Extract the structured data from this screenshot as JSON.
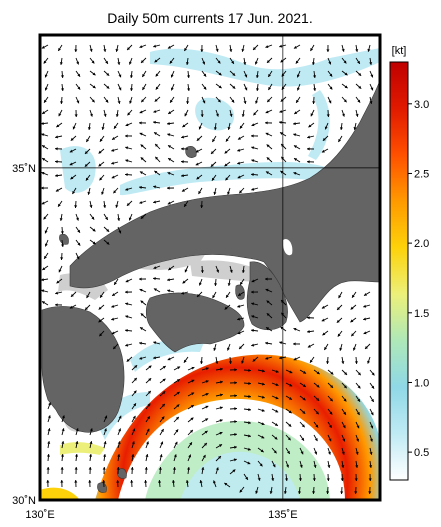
{
  "title": "Daily 50m currents 17 Jun. 2021.",
  "map": {
    "lon_range": [
      130,
      137
    ],
    "lat_range": [
      30,
      37
    ],
    "x_ticks": [
      {
        "value": 130,
        "label": "130˚E"
      },
      {
        "value": 135,
        "label": "135˚E"
      }
    ],
    "y_ticks": [
      {
        "value": 35,
        "label": "35˚N"
      },
      {
        "value": 30,
        "label": "30˚N"
      }
    ],
    "grid_lines": true
  },
  "colorbar": {
    "unit": "[kt]",
    "range": [
      0.3,
      3.3
    ],
    "ticks": [
      {
        "value": 0.5,
        "label": "0.5"
      },
      {
        "value": 1.0,
        "label": "1.0"
      },
      {
        "value": 1.5,
        "label": "1.5"
      },
      {
        "value": 2.0,
        "label": "2.0"
      },
      {
        "value": 2.5,
        "label": "2.5"
      },
      {
        "value": 3.0,
        "label": "3.0"
      }
    ],
    "stops": [
      "#ffffff",
      "#bfeaf4",
      "#8fd8e6",
      "#aee8b8",
      "#ecf07a",
      "#fdd20a",
      "#ff9a00",
      "#ff5000",
      "#e01a00",
      "#c00000"
    ]
  },
  "colors": {
    "land": "#646464",
    "sea_low": "#ffffff",
    "shallow": "#cfcfcf",
    "arrow": "#000000"
  }
}
